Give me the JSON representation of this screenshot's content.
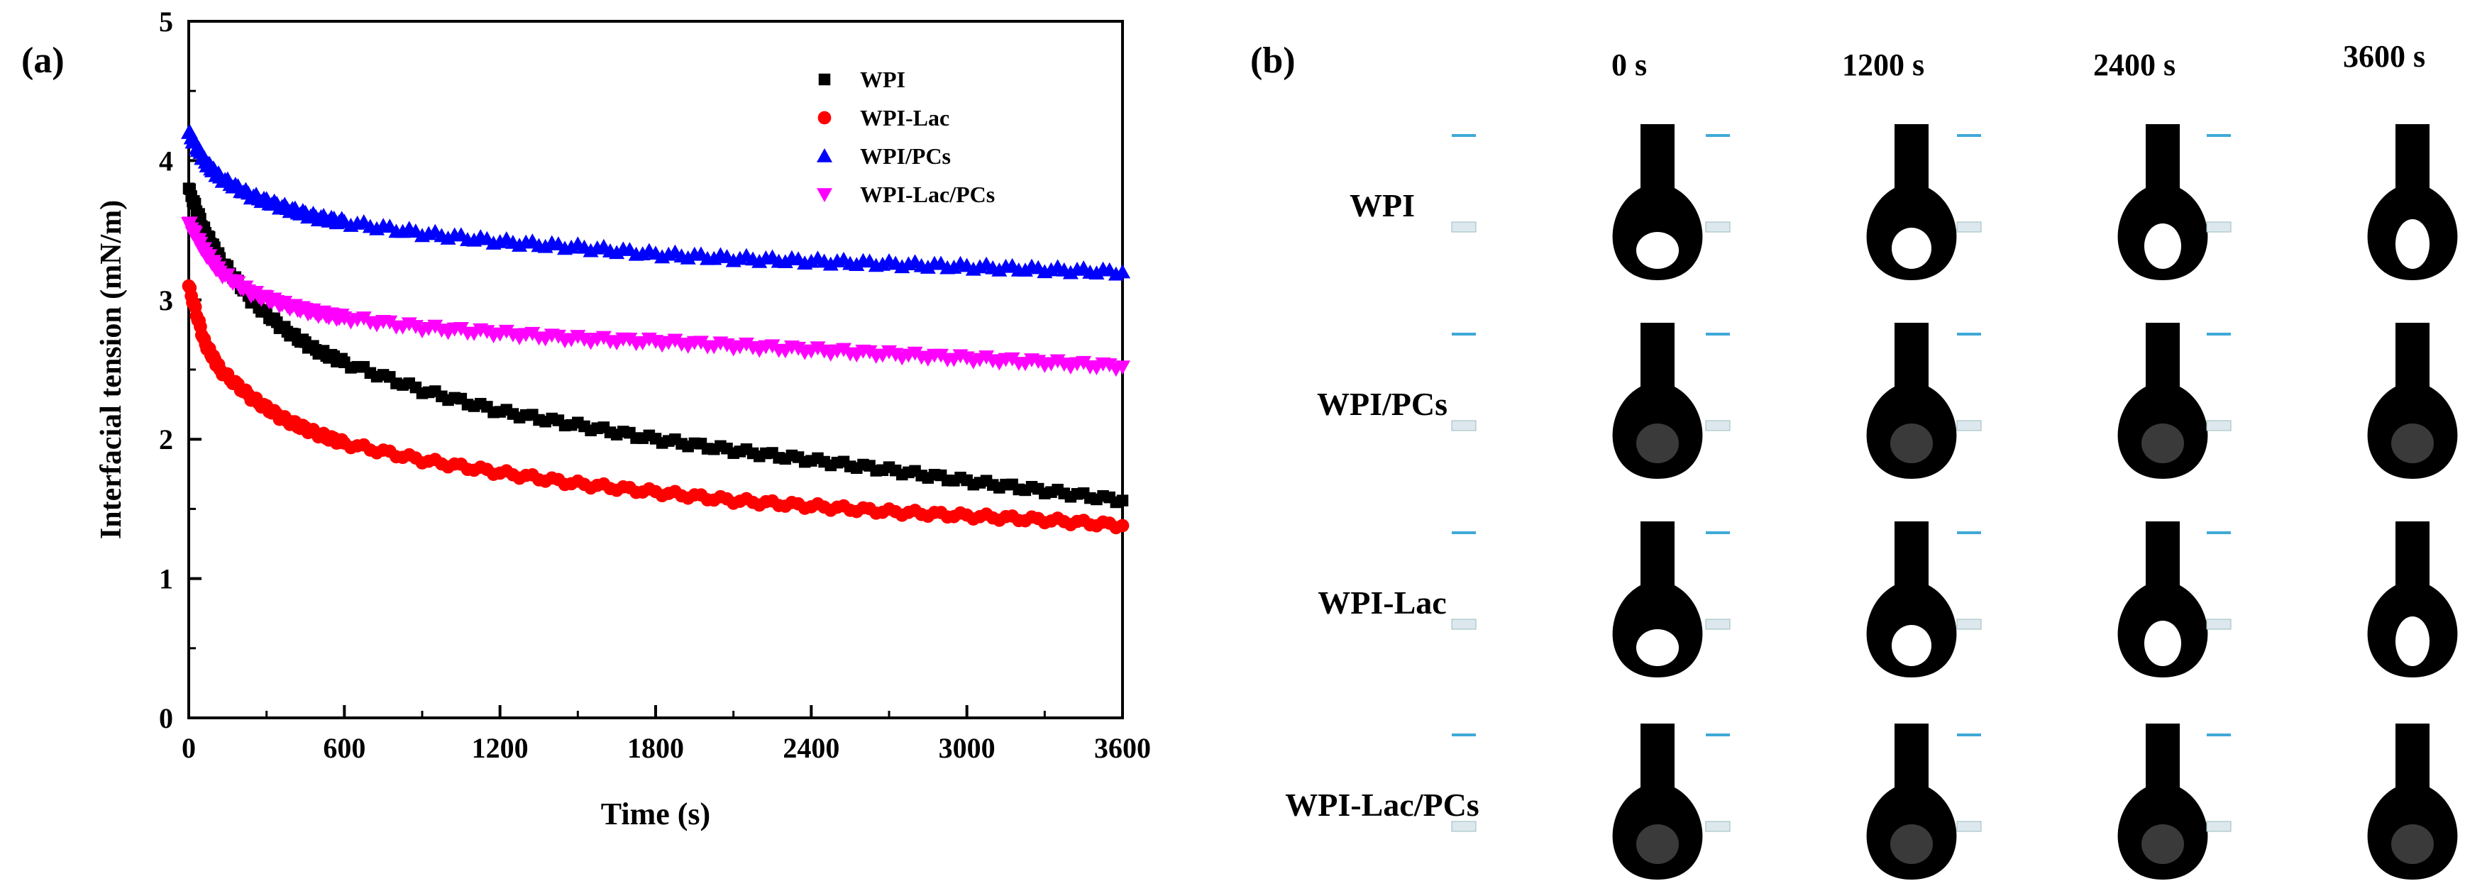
{
  "panel_a_label": "(a)",
  "panel_b_label": "(b)",
  "chart_data": {
    "type": "scatter",
    "title": "",
    "xlabel": "Time (s)",
    "ylabel": "Interfacial tension (mN/m)",
    "xlim": [
      0,
      3600
    ],
    "ylim": [
      0,
      5
    ],
    "xticks": [
      0,
      600,
      1200,
      1800,
      2400,
      3000,
      3600
    ],
    "yticks": [
      0,
      1,
      2,
      3,
      4,
      5
    ],
    "legend_position": "top-right",
    "series": [
      {
        "name": "WPI",
        "marker": "square",
        "color": "#000000",
        "x": [
          0,
          60,
          120,
          240,
          360,
          480,
          600,
          900,
          1200,
          1500,
          1800,
          2100,
          2400,
          2700,
          3000,
          3300,
          3600
        ],
        "y": [
          3.8,
          3.5,
          3.3,
          3.0,
          2.8,
          2.65,
          2.55,
          2.35,
          2.2,
          2.1,
          2.0,
          1.92,
          1.85,
          1.78,
          1.7,
          1.63,
          1.56
        ]
      },
      {
        "name": "WPI-Lac",
        "marker": "circle",
        "color": "#ff0000",
        "x": [
          0,
          60,
          120,
          240,
          360,
          480,
          600,
          900,
          1200,
          1500,
          1800,
          2100,
          2400,
          2700,
          3000,
          3300,
          3600
        ],
        "y": [
          3.1,
          2.7,
          2.5,
          2.3,
          2.15,
          2.05,
          1.97,
          1.85,
          1.76,
          1.68,
          1.62,
          1.56,
          1.52,
          1.48,
          1.45,
          1.42,
          1.38
        ]
      },
      {
        "name": "WPI/PCs",
        "marker": "triangle-up",
        "color": "#0000ff",
        "x": [
          0,
          60,
          120,
          240,
          360,
          480,
          600,
          900,
          1200,
          1500,
          1800,
          2100,
          2400,
          2700,
          3000,
          3300,
          3600
        ],
        "y": [
          4.2,
          4.0,
          3.88,
          3.75,
          3.67,
          3.6,
          3.56,
          3.48,
          3.42,
          3.38,
          3.33,
          3.3,
          3.28,
          3.26,
          3.24,
          3.22,
          3.2
        ]
      },
      {
        "name": "WPI-Lac/PCs",
        "marker": "triangle-down",
        "color": "#ff00ff",
        "x": [
          0,
          60,
          120,
          240,
          360,
          480,
          600,
          900,
          1200,
          1500,
          1800,
          2100,
          2400,
          2700,
          3000,
          3300,
          3600
        ],
        "y": [
          3.55,
          3.35,
          3.2,
          3.05,
          2.97,
          2.91,
          2.87,
          2.8,
          2.76,
          2.72,
          2.7,
          2.67,
          2.64,
          2.61,
          2.58,
          2.55,
          2.52
        ]
      }
    ]
  },
  "drop_panel": {
    "time_labels": [
      "0 s",
      "1200 s",
      "2400 s",
      "3600 s"
    ],
    "row_labels": [
      "WPI",
      "WPI/PCs",
      "WPI-Lac",
      "WPI-Lac/PCs"
    ],
    "drop_colors": {
      "outline": "#000000",
      "core_open": "#ffffff",
      "core_filled": "#3a3a3a",
      "scale_mark": "#3fa9d8"
    }
  }
}
